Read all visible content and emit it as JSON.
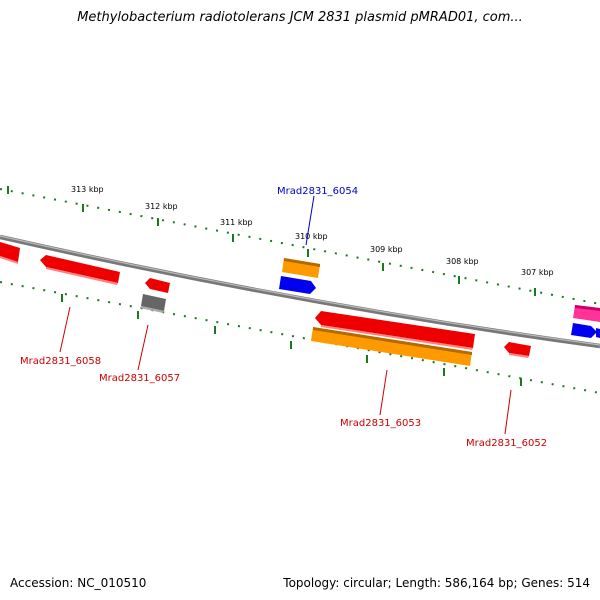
{
  "title": "Methylobacterium radiotolerans JCM 2831 plasmid pMRAD01, com...",
  "footer": {
    "accession": "Accession: NC_010510",
    "summary": "Topology: circular; Length: 586,164 bp; Genes: 514"
  },
  "colors": {
    "backbone": "#888888",
    "tick": "#1a7a1a",
    "cds": "#ee0000",
    "gene": "#ff9900",
    "rna": "#0000ee",
    "pseudo": "#666666",
    "other": "#ff3399",
    "label_red": "#cc0000",
    "label_blue": "#0000cc"
  },
  "ticks": [
    {
      "label": "313 kbp"
    },
    {
      "label": "312 kbp"
    },
    {
      "label": "311 kbp"
    },
    {
      "label": "310 kbp"
    },
    {
      "label": "309 kbp"
    },
    {
      "label": "308 kbp"
    },
    {
      "label": "307 kbp"
    }
  ],
  "gene_labels": [
    {
      "text": "Mrad2831_6054",
      "color": "label_blue"
    },
    {
      "text": "Mrad2831_6058",
      "color": "label_red"
    },
    {
      "text": "Mrad2831_6057",
      "color": "label_red"
    },
    {
      "text": "Mrad2831_6053",
      "color": "label_red"
    },
    {
      "text": "Mrad2831_6052",
      "color": "label_red"
    }
  ]
}
